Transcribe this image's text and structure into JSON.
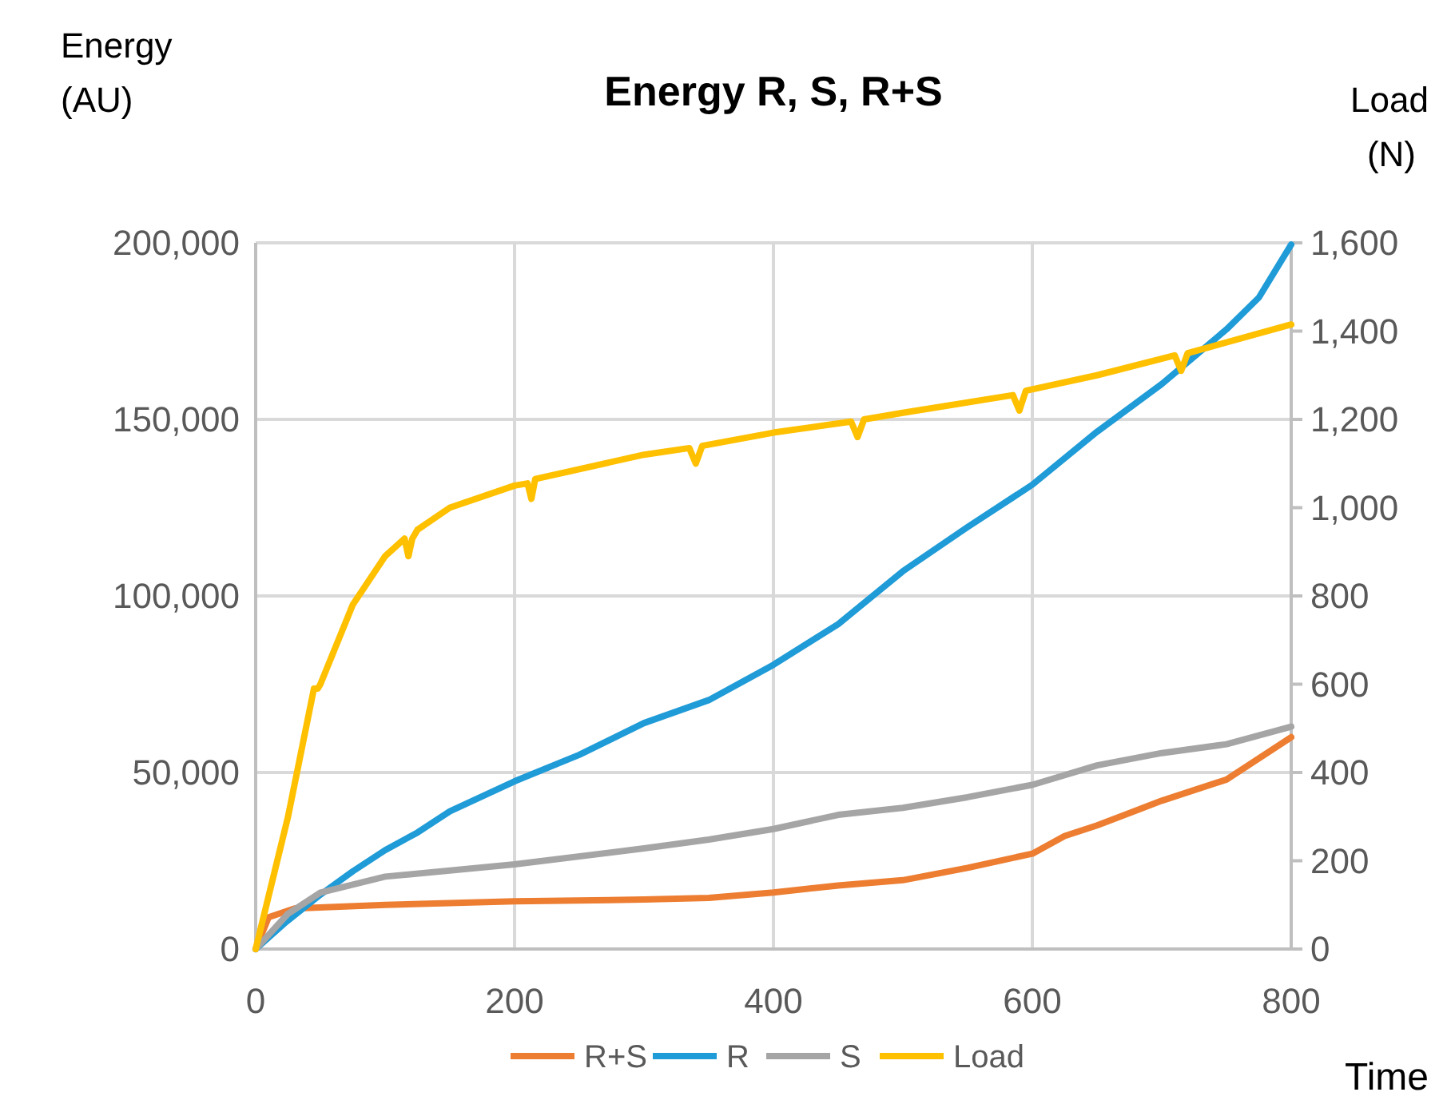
{
  "chart_data": {
    "type": "line",
    "title": "Energy R, S, R+S",
    "xlabel": "Time",
    "ylabel": "Energy (AU)",
    "y2label": "Load (N)",
    "xlim": [
      0,
      800
    ],
    "xticks": [
      0,
      200,
      400,
      600,
      800
    ],
    "ylim": [
      0,
      200000
    ],
    "yticks": [
      0,
      {
        "value": 50000,
        "label": "50,000"
      },
      {
        "value": 100000,
        "label": "100,000"
      },
      {
        "value": 150000,
        "label": "150,000"
      },
      {
        "value": 200000,
        "label": "200,000"
      }
    ],
    "y2lim": [
      0,
      1600
    ],
    "y2ticks": [
      0,
      200,
      400,
      600,
      800,
      {
        "value": 1000,
        "label": "1,000"
      },
      {
        "value": 1200,
        "label": "1,200"
      },
      {
        "value": 1400,
        "label": "1,400"
      },
      {
        "value": 1600,
        "label": "1,600"
      }
    ],
    "grid": true,
    "legend": "bottom",
    "line_style": "solid",
    "series": [
      {
        "name": "R+S",
        "color": "#ed7d31",
        "x": [
          0,
          10,
          30,
          100,
          200,
          300,
          350,
          400,
          450,
          500,
          550,
          600,
          625,
          650,
          700,
          750,
          800
        ],
        "values": [
          0,
          9000,
          11500,
          12500,
          13500,
          14000,
          14500,
          16000,
          18000,
          19500,
          23000,
          27000,
          32000,
          35000,
          42000,
          48000,
          60000
        ]
      },
      {
        "name": "R",
        "color": "#1f9bd7",
        "x": [
          0,
          22,
          50,
          75,
          100,
          125,
          150,
          200,
          250,
          300,
          350,
          400,
          450,
          500,
          550,
          600,
          650,
          700,
          750,
          775,
          800
        ],
        "values": [
          0,
          7200,
          15400,
          22000,
          28000,
          33000,
          39000,
          47500,
          55000,
          64000,
          70500,
          80500,
          92000,
          107000,
          119500,
          131500,
          146500,
          160000,
          175500,
          184500,
          199500
        ]
      },
      {
        "name": "S",
        "color": "#a5a5a5",
        "x": [
          0,
          25,
          50,
          100,
          200,
          300,
          350,
          400,
          450,
          500,
          550,
          600,
          650,
          700,
          750,
          800
        ],
        "values": [
          0,
          10000,
          16000,
          20500,
          24000,
          28500,
          31000,
          34000,
          38000,
          40000,
          43000,
          46500,
          52000,
          55500,
          58000,
          63000
        ]
      },
      {
        "name": "Load",
        "color": "#ffc000",
        "axis": "y2",
        "x": [
          0,
          25,
          45,
          48,
          50,
          75,
          100,
          115,
          118,
          121,
          125,
          150,
          200,
          210,
          213,
          216,
          300,
          335,
          340,
          345,
          400,
          460,
          465,
          470,
          500,
          585,
          590,
          595,
          650,
          710,
          715,
          720,
          800
        ],
        "values": [
          0,
          300,
          590,
          590,
          600,
          780,
          890,
          930,
          890,
          930,
          950,
          1000,
          1050,
          1055,
          1020,
          1065,
          1120,
          1135,
          1100,
          1140,
          1170,
          1195,
          1160,
          1200,
          1215,
          1255,
          1220,
          1265,
          1300,
          1345,
          1310,
          1350,
          1415
        ]
      }
    ]
  }
}
